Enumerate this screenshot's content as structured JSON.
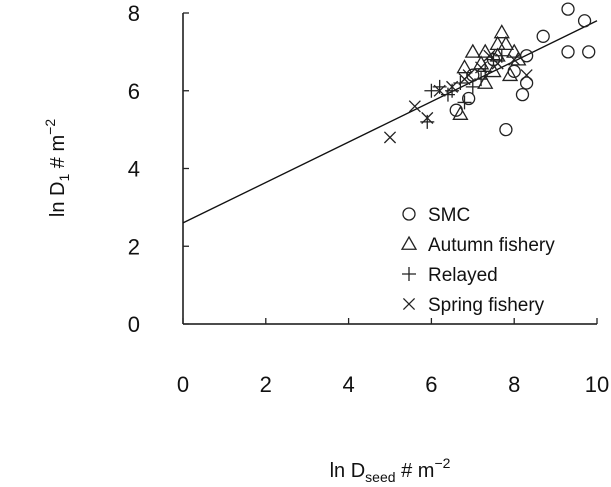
{
  "chart_data": {
    "type": "scatter",
    "title": "",
    "xlabel": {
      "base": "ln D",
      "sub": "seed",
      "suffix": " # m",
      "sup": "−2"
    },
    "ylabel": {
      "base": "ln D",
      "sub": "1",
      "suffix": " # m",
      "sup": "−2"
    },
    "xlim": [
      0,
      10
    ],
    "ylim": [
      0,
      8
    ],
    "xticks": [
      "0",
      "2",
      "4",
      "6",
      "8",
      "10"
    ],
    "yticks": [
      "0",
      "2",
      "4",
      "6",
      "8"
    ],
    "grid": false,
    "legend_position": "bottom-right",
    "fit_line": {
      "intercept": 2.6,
      "slope": 0.52,
      "x_range": [
        0,
        10
      ]
    },
    "series": [
      {
        "name": "SMC",
        "marker": "circle",
        "points": [
          [
            9.3,
            8.1
          ],
          [
            9.7,
            7.8
          ],
          [
            8.7,
            7.4
          ],
          [
            9.3,
            7.0
          ],
          [
            9.8,
            7.0
          ],
          [
            8.3,
            6.9
          ],
          [
            8.0,
            6.5
          ],
          [
            8.2,
            5.9
          ],
          [
            8.3,
            6.2
          ],
          [
            7.8,
            5.0
          ],
          [
            7.0,
            6.4
          ],
          [
            6.9,
            5.8
          ],
          [
            6.6,
            5.5
          ],
          [
            7.5,
            6.8
          ]
        ]
      },
      {
        "name": "Autumn fishery",
        "marker": "triangle",
        "points": [
          [
            7.7,
            7.5
          ],
          [
            7.3,
            7.0
          ],
          [
            7.8,
            7.2
          ],
          [
            8.0,
            7.0
          ],
          [
            7.6,
            6.9
          ],
          [
            7.0,
            7.0
          ],
          [
            6.8,
            6.6
          ],
          [
            7.2,
            6.7
          ],
          [
            8.1,
            6.8
          ],
          [
            7.5,
            6.5
          ],
          [
            6.7,
            5.4
          ],
          [
            7.9,
            6.4
          ],
          [
            7.3,
            6.2
          ],
          [
            7.6,
            7.2
          ]
        ]
      },
      {
        "name": "Relayed",
        "marker": "plus",
        "points": [
          [
            5.9,
            5.2
          ],
          [
            6.0,
            6.0
          ],
          [
            6.2,
            6.1
          ],
          [
            6.5,
            6.0
          ],
          [
            6.7,
            6.2
          ],
          [
            7.0,
            6.1
          ],
          [
            7.2,
            6.3
          ],
          [
            7.5,
            6.8
          ],
          [
            7.7,
            6.9
          ],
          [
            6.8,
            5.7
          ],
          [
            6.4,
            5.9
          ],
          [
            7.3,
            6.5
          ]
        ]
      },
      {
        "name": "Spring fishery",
        "marker": "cross",
        "points": [
          [
            5.0,
            4.8
          ],
          [
            5.6,
            5.6
          ],
          [
            5.9,
            5.3
          ],
          [
            6.2,
            6.0
          ],
          [
            6.5,
            6.1
          ],
          [
            6.8,
            6.3
          ],
          [
            7.2,
            6.6
          ],
          [
            7.6,
            6.7
          ],
          [
            8.0,
            6.8
          ],
          [
            6.9,
            6.4
          ],
          [
            8.3,
            6.4
          ],
          [
            7.4,
            6.9
          ]
        ]
      }
    ]
  }
}
